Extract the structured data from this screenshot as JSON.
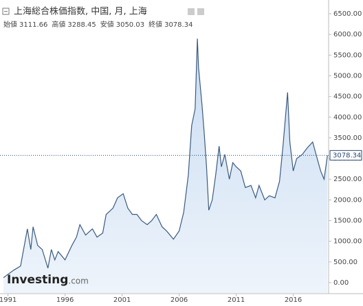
{
  "chart_data": {
    "type": "area",
    "title": "上海総合株価指数, 中国, 月, 上海",
    "ohlc": [
      {
        "label": "始値",
        "value": 3111.66
      },
      {
        "label": "高値",
        "value": 3288.45
      },
      {
        "label": "安値",
        "value": 3050.03
      },
      {
        "label": "終値",
        "value": 3078.34
      }
    ],
    "last_price": 3078.34,
    "watermark": [
      "Investing",
      ".com"
    ],
    "color": "#3a5a80",
    "fill": "#dde9f7",
    "x": [
      1990.6,
      1991.5,
      1992.1,
      1992.7,
      1993.0,
      1993.2,
      1993.6,
      1994.0,
      1994.5,
      1994.8,
      1995.1,
      1995.4,
      1996.0,
      1996.6,
      1997.0,
      1997.3,
      1997.8,
      1998.4,
      1998.8,
      1999.3,
      1999.6,
      2000.2,
      2000.6,
      2001.1,
      2001.5,
      2001.9,
      2002.3,
      2002.7,
      2003.2,
      2003.6,
      2004.0,
      2004.5,
      2004.9,
      2005.5,
      2006.0,
      2006.4,
      2006.8,
      2007.1,
      2007.4,
      2007.6,
      2007.7,
      2008.0,
      2008.2,
      2008.4,
      2008.6,
      2008.9,
      2009.2,
      2009.5,
      2009.7,
      2010.0,
      2010.4,
      2010.7,
      2011.0,
      2011.4,
      2011.8,
      2012.3,
      2012.7,
      2013.0,
      2013.5,
      2013.9,
      2014.4,
      2014.8,
      2015.1,
      2015.5,
      2015.7,
      2016.0,
      2016.3,
      2016.8,
      2017.2,
      2017.7,
      2018.0,
      2018.4,
      2018.7,
      2019.0
    ],
    "values": [
      120,
      300,
      400,
      1300,
      800,
      1350,
      900,
      800,
      350,
      800,
      550,
      750,
      550,
      900,
      1100,
      1400,
      1150,
      1300,
      1100,
      1200,
      1650,
      1800,
      2050,
      2150,
      1800,
      1650,
      1650,
      1500,
      1400,
      1500,
      1650,
      1350,
      1250,
      1050,
      1250,
      1700,
      2600,
      3800,
      4200,
      5900,
      5200,
      4300,
      3600,
      2800,
      1750,
      2000,
      2600,
      3300,
      2800,
      3100,
      2500,
      2900,
      2800,
      2700,
      2300,
      2350,
      2050,
      2350,
      2000,
      2100,
      2050,
      2450,
      3300,
      4600,
      3400,
      2700,
      3000,
      3100,
      3250,
      3400,
      3100,
      2700,
      2500,
      3078
    ],
    "xlim": [
      1990.3,
      2019.1
    ],
    "xticks": [
      1991,
      1996,
      2001,
      2006,
      2011,
      2016
    ],
    "ylim": [
      -250,
      6800
    ],
    "yticks": [
      {
        "value": 0,
        "label": "0.00"
      },
      {
        "value": 500,
        "label": "500.00"
      },
      {
        "value": 1000,
        "label": "1000.00"
      },
      {
        "value": 1500,
        "label": "1500.00"
      },
      {
        "value": 2000,
        "label": "2000.00"
      },
      {
        "value": 2500,
        "label": "2500.00"
      },
      {
        "value": 3000,
        "label": "3000.00"
      },
      {
        "value": 3500,
        "label": "3500.00"
      },
      {
        "value": 4000,
        "label": "4000.00"
      },
      {
        "value": 4500,
        "label": "4500.00"
      },
      {
        "value": 5000,
        "label": "5000.00"
      },
      {
        "value": 5500,
        "label": "5500.00"
      },
      {
        "value": 6000,
        "label": "6000.00"
      },
      {
        "value": 6500,
        "label": "6500.00"
      }
    ]
  }
}
